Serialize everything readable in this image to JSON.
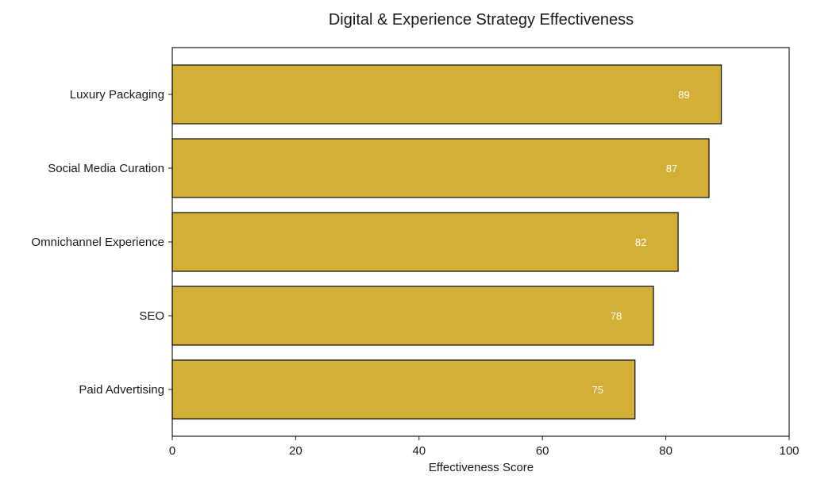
{
  "chart_data": {
    "type": "bar",
    "orientation": "horizontal",
    "title": "Digital & Experience Strategy Effectiveness",
    "xlabel": "Effectiveness Score",
    "ylabel": "",
    "categories": [
      "Luxury Packaging",
      "Social Media Curation",
      "Omnichannel Experience",
      "SEO",
      "Paid Advertising"
    ],
    "values": [
      89,
      87,
      82,
      78,
      75
    ],
    "xlim": [
      0,
      100
    ],
    "xticks": [
      0,
      20,
      40,
      60,
      80,
      100
    ],
    "grid": false,
    "bar_color": "#D4AF37",
    "bar_edge_color": "#1a1a1a",
    "data_label_color": "#ffffff"
  }
}
